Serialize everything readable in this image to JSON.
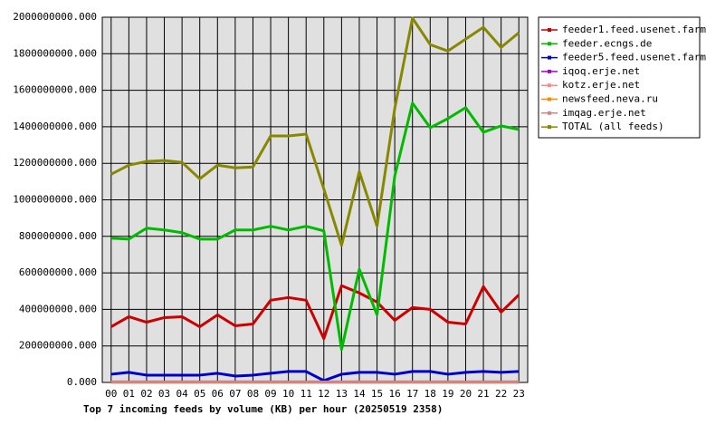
{
  "chart_data": {
    "type": "line",
    "title": "Top 7 incoming feeds by volume (KB) per hour (20250519 2358)",
    "categories": [
      "00",
      "01",
      "02",
      "03",
      "04",
      "05",
      "06",
      "07",
      "08",
      "09",
      "10",
      "11",
      "12",
      "13",
      "14",
      "15",
      "16",
      "17",
      "18",
      "19",
      "20",
      "21",
      "22",
      "23"
    ],
    "series": [
      {
        "name": "feeder1.feed.usenet.farm",
        "color": "#cc0000",
        "values": [
          305000000,
          360000000,
          330000000,
          355000000,
          360000000,
          305000000,
          370000000,
          310000000,
          320000000,
          450000000,
          465000000,
          450000000,
          240000000,
          530000000,
          490000000,
          440000000,
          340000000,
          410000000,
          400000000,
          330000000,
          320000000,
          525000000,
          385000000,
          480000000
        ]
      },
      {
        "name": "feeder.ecngs.de",
        "color": "#00bb00",
        "values": [
          790000000,
          785000000,
          845000000,
          835000000,
          820000000,
          785000000,
          785000000,
          835000000,
          835000000,
          855000000,
          835000000,
          855000000,
          830000000,
          180000000,
          620000000,
          370000000,
          1130000000,
          1530000000,
          1395000000,
          1445000000,
          1505000000,
          1370000000,
          1405000000,
          1385000000
        ]
      },
      {
        "name": "feeder5.feed.usenet.farm",
        "color": "#0000cc",
        "values": [
          45000000,
          55000000,
          40000000,
          40000000,
          40000000,
          40000000,
          50000000,
          35000000,
          40000000,
          50000000,
          60000000,
          60000000,
          10000000,
          45000000,
          55000000,
          55000000,
          45000000,
          60000000,
          60000000,
          45000000,
          55000000,
          60000000,
          55000000,
          60000000
        ]
      },
      {
        "name": "iqoq.erje.net",
        "color": "#aa00cc",
        "values": [
          3000000,
          3000000,
          3000000,
          3000000,
          3000000,
          3000000,
          3000000,
          3000000,
          3000000,
          3000000,
          3000000,
          3000000,
          3000000,
          3000000,
          3000000,
          3000000,
          3000000,
          3000000,
          3000000,
          3000000,
          3000000,
          3000000,
          3000000,
          3000000
        ]
      },
      {
        "name": "kotz.erje.net",
        "color": "#ff8888",
        "values": [
          2000000,
          2000000,
          2000000,
          2000000,
          2000000,
          2000000,
          2000000,
          2000000,
          2000000,
          2000000,
          2000000,
          2000000,
          2000000,
          2000000,
          2000000,
          2000000,
          2000000,
          2000000,
          2000000,
          2000000,
          2000000,
          2000000,
          2000000,
          2000000
        ]
      },
      {
        "name": "newsfeed.neva.ru",
        "color": "#ff8800",
        "values": [
          1000000,
          1000000,
          1000000,
          1000000,
          1000000,
          1000000,
          1000000,
          1000000,
          1000000,
          1000000,
          1000000,
          1000000,
          1000000,
          1000000,
          1000000,
          1000000,
          1000000,
          1000000,
          1000000,
          1000000,
          1000000,
          1000000,
          1000000,
          1000000
        ]
      },
      {
        "name": "imqag.erje.net",
        "color": "#cc8888",
        "values": [
          1000000,
          1000000,
          1000000,
          1000000,
          1000000,
          1000000,
          1000000,
          1000000,
          1000000,
          1000000,
          1000000,
          1000000,
          1000000,
          1000000,
          1000000,
          1000000,
          1000000,
          1000000,
          1000000,
          1000000,
          1000000,
          1000000,
          1000000,
          1000000
        ]
      },
      {
        "name": "TOTAL (all feeds)",
        "color": "#888800",
        "values": [
          1140000000,
          1190000000,
          1210000000,
          1215000000,
          1205000000,
          1115000000,
          1190000000,
          1175000000,
          1180000000,
          1350000000,
          1350000000,
          1360000000,
          1060000000,
          750000000,
          1155000000,
          855000000,
          1500000000,
          1995000000,
          1850000000,
          1815000000,
          1880000000,
          1945000000,
          1835000000,
          1915000000
        ]
      }
    ],
    "ylim": [
      0,
      2000000000
    ],
    "yticks": [
      {
        "value": 0,
        "label": "0.000"
      },
      {
        "value": 200000000,
        "label": "200000000.000"
      },
      {
        "value": 400000000,
        "label": "400000000.000"
      },
      {
        "value": 600000000,
        "label": "600000000.000"
      },
      {
        "value": 800000000,
        "label": "800000000.000"
      },
      {
        "value": 1000000000,
        "label": "1000000000.000"
      },
      {
        "value": 1200000000,
        "label": "1200000000.000"
      },
      {
        "value": 1400000000,
        "label": "1400000000.000"
      },
      {
        "value": 1600000000,
        "label": "1600000000.000"
      },
      {
        "value": 1800000000,
        "label": "1800000000.000"
      },
      {
        "value": 2000000000,
        "label": "2000000000.000"
      }
    ],
    "grid": true,
    "legend": "right"
  }
}
